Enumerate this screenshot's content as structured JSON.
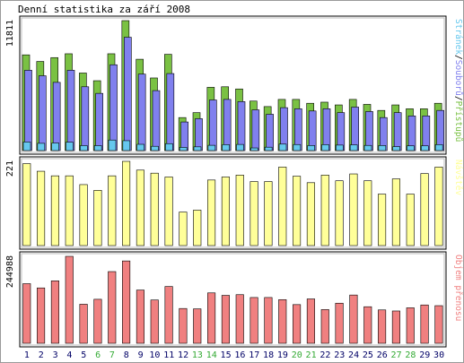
{
  "title": "Denní statistika za září 2008",
  "colors": {
    "background": "#ffffff",
    "panel_border": "#000000",
    "hits": "#7ac143",
    "files": "#8080ee",
    "pages": "#66c8ee",
    "visits": "#ffff99",
    "kbytes": "#f08080",
    "weekend": "#33aa33",
    "weekday": "#000066"
  },
  "chart_data": [
    {
      "type": "bar",
      "title": "Denní statistika za září 2008",
      "y_max_label": "11811",
      "legend": [
        {
          "name": "Přístupů",
          "color": "#7ac143"
        },
        {
          "name": "Souborů",
          "color": "#8080ee"
        },
        {
          "name": "Stránek",
          "color": "#66c8ee"
        }
      ],
      "legend_separator": "/",
      "categories": [
        "1",
        "2",
        "3",
        "4",
        "5",
        "6",
        "7",
        "8",
        "9",
        "10",
        "11",
        "12",
        "13",
        "14",
        "15",
        "16",
        "17",
        "18",
        "19",
        "20",
        "21",
        "22",
        "23",
        "24",
        "25",
        "26",
        "27",
        "28",
        "29",
        "30"
      ],
      "weekend_days": [
        6,
        7,
        13,
        14,
        20,
        21,
        27,
        28
      ],
      "ylim": [
        0,
        11811
      ],
      "series": [
        {
          "name": "Přístupů",
          "values": [
            8700,
            8100,
            8450,
            8800,
            7050,
            6350,
            8800,
            11811,
            8300,
            6600,
            8750,
            3000,
            3450,
            5750,
            5800,
            5600,
            4500,
            4000,
            4650,
            4650,
            4300,
            4400,
            4150,
            4650,
            4200,
            3650,
            4150,
            3800,
            3800,
            4300
          ]
        },
        {
          "name": "Souborů",
          "values": [
            7300,
            6800,
            6200,
            7300,
            5800,
            5200,
            7800,
            10300,
            6950,
            5450,
            7000,
            2600,
            2900,
            4600,
            4650,
            4450,
            3700,
            3300,
            3900,
            3800,
            3600,
            3800,
            3450,
            3950,
            3550,
            3000,
            3450,
            3150,
            3150,
            3650
          ]
        },
        {
          "name": "Stránek",
          "values": [
            780,
            660,
            690,
            760,
            450,
            450,
            960,
            900,
            570,
            390,
            630,
            290,
            340,
            480,
            540,
            560,
            240,
            310,
            590,
            550,
            460,
            540,
            500,
            520,
            470,
            460,
            360,
            430,
            430,
            540
          ]
        }
      ]
    },
    {
      "type": "bar",
      "y_max_label": "221",
      "legend": [
        {
          "name": "Návštěv",
          "color": "#ffff99"
        }
      ],
      "categories": [
        "1",
        "2",
        "3",
        "4",
        "5",
        "6",
        "7",
        "8",
        "9",
        "10",
        "11",
        "12",
        "13",
        "14",
        "15",
        "16",
        "17",
        "18",
        "19",
        "20",
        "21",
        "22",
        "23",
        "24",
        "25",
        "26",
        "27",
        "28",
        "29",
        "30"
      ],
      "ylim": [
        0,
        221
      ],
      "series": [
        {
          "name": "Návštěv",
          "values": [
            215,
            195,
            183,
            183,
            160,
            145,
            183,
            221,
            198,
            190,
            180,
            88,
            93,
            172,
            180,
            185,
            168,
            168,
            206,
            182,
            165,
            185,
            170,
            188,
            170,
            135,
            175,
            135,
            189,
            206
          ]
        }
      ]
    },
    {
      "type": "bar",
      "y_max_label": "244988",
      "legend": [
        {
          "name": "Objem přenosu",
          "color": "#f08080"
        }
      ],
      "categories": [
        "1",
        "2",
        "3",
        "4",
        "5",
        "6",
        "7",
        "8",
        "9",
        "10",
        "11",
        "12",
        "13",
        "14",
        "15",
        "16",
        "17",
        "18",
        "19",
        "20",
        "21",
        "22",
        "23",
        "24",
        "25",
        "26",
        "27",
        "28",
        "29",
        "30"
      ],
      "ylim": [
        0,
        244988
      ],
      "series": [
        {
          "name": "Objem přenosu",
          "values": [
            168000,
            156000,
            176000,
            244988,
            110000,
            124000,
            202000,
            232000,
            150000,
            122000,
            160000,
            98000,
            97000,
            142000,
            135000,
            137000,
            129000,
            129000,
            123000,
            109000,
            125000,
            95000,
            113000,
            136000,
            103000,
            94000,
            91000,
            100000,
            108000,
            106000
          ]
        }
      ]
    }
  ]
}
